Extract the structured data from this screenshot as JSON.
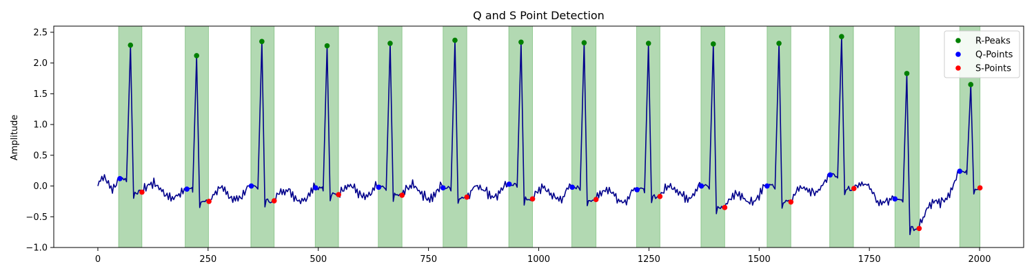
{
  "chart_data": {
    "type": "line",
    "title": "Q and S Point Detection",
    "xlabel": "",
    "ylabel": "Amplitude",
    "xlim": [
      -100,
      2100
    ],
    "ylim": [
      -1.0,
      2.6
    ],
    "xticks": [
      0,
      250,
      500,
      750,
      1000,
      1250,
      1500,
      1750,
      2000
    ],
    "yticks": [
      -1.0,
      -0.5,
      0.0,
      0.5,
      1.0,
      1.5,
      2.0,
      2.5
    ],
    "grid": false,
    "legend": {
      "placement": "top-right",
      "entries": [
        "R-Peaks",
        "Q-Points",
        "S-Points"
      ]
    },
    "signal_color": "#00008b",
    "region_color": "#008000",
    "shaded_regions": [
      [
        47,
        100
      ],
      [
        198,
        251
      ],
      [
        347,
        400
      ],
      [
        493,
        546
      ],
      [
        636,
        690
      ],
      [
        783,
        837
      ],
      [
        932,
        986
      ],
      [
        1075,
        1130
      ],
      [
        1222,
        1275
      ],
      [
        1368,
        1422
      ],
      [
        1518,
        1572
      ],
      [
        1660,
        1714
      ],
      [
        1808,
        1863
      ],
      [
        1955,
        2001
      ]
    ],
    "series": [
      {
        "name": "R-Peaks",
        "marker": "circle",
        "color": "#008000",
        "points": [
          [
            74,
            2.29
          ],
          [
            224,
            2.12
          ],
          [
            372,
            2.35
          ],
          [
            520,
            2.28
          ],
          [
            663,
            2.32
          ],
          [
            810,
            2.37
          ],
          [
            960,
            2.34
          ],
          [
            1103,
            2.33
          ],
          [
            1249,
            2.32
          ],
          [
            1396,
            2.31
          ],
          [
            1545,
            2.32
          ],
          [
            1687,
            2.43
          ],
          [
            1835,
            1.83
          ],
          [
            1980,
            1.65
          ]
        ]
      },
      {
        "name": "Q-Points",
        "marker": "circle",
        "color": "#0000ff",
        "points": [
          [
            50,
            0.12
          ],
          [
            202,
            -0.05
          ],
          [
            348,
            0.0
          ],
          [
            494,
            -0.03
          ],
          [
            637,
            -0.02
          ],
          [
            783,
            -0.03
          ],
          [
            933,
            0.03
          ],
          [
            1076,
            -0.02
          ],
          [
            1223,
            -0.06
          ],
          [
            1369,
            0.0
          ],
          [
            1518,
            0.0
          ],
          [
            1661,
            0.18
          ],
          [
            1808,
            -0.21
          ],
          [
            1955,
            0.24
          ]
        ]
      },
      {
        "name": "S-Points",
        "marker": "circle",
        "color": "#ff0000",
        "points": [
          [
            100,
            -0.1
          ],
          [
            252,
            -0.25
          ],
          [
            400,
            -0.24
          ],
          [
            546,
            -0.14
          ],
          [
            690,
            -0.15
          ],
          [
            837,
            -0.18
          ],
          [
            986,
            -0.21
          ],
          [
            1130,
            -0.22
          ],
          [
            1275,
            -0.17
          ],
          [
            1422,
            -0.35
          ],
          [
            1572,
            -0.26
          ],
          [
            1715,
            -0.04
          ],
          [
            1863,
            -0.69
          ],
          [
            2001,
            -0.03
          ]
        ]
      }
    ]
  }
}
